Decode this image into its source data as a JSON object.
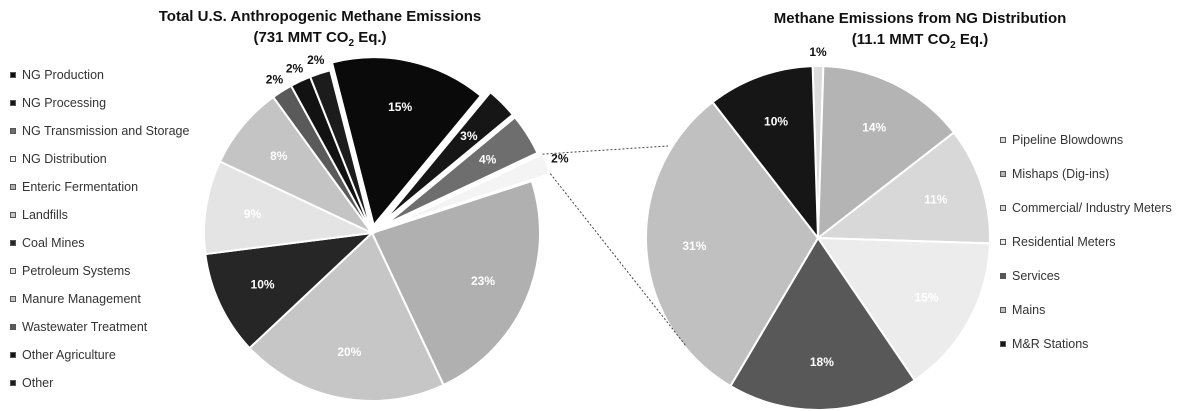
{
  "chart_data": [
    {
      "type": "pie",
      "title": "Total U.S. Anthropogenic Methane Emissions",
      "subtitle_prefix": "(731 MMT CO",
      "subtitle_sub": "2",
      "subtitle_suffix": " Eq.)",
      "legend_position": "left",
      "slices": [
        {
          "label": "NG Production",
          "value": 15,
          "pct_label": "15%",
          "color": "#0a0a0a",
          "text_color": "#ffffff"
        },
        {
          "label": "NG Processing",
          "value": 3,
          "pct_label": "3%",
          "color": "#161616",
          "text_color": "#ffffff"
        },
        {
          "label": "NG Transmission and Storage",
          "value": 4,
          "pct_label": "4%",
          "color": "#6e6e6e",
          "text_color": "#ffffff"
        },
        {
          "label": "NG Distribution",
          "value": 2,
          "pct_label": "2%",
          "color": "#f4f4f4",
          "text_color": "#111111"
        },
        {
          "label": "Enteric Fermentation",
          "value": 23,
          "pct_label": "23%",
          "color": "#b0b0b0",
          "text_color": "#ffffff"
        },
        {
          "label": "Landfills",
          "value": 20,
          "pct_label": "20%",
          "color": "#c6c6c6",
          "text_color": "#ffffff"
        },
        {
          "label": "Coal Mines",
          "value": 10,
          "pct_label": "10%",
          "color": "#262626",
          "text_color": "#ffffff"
        },
        {
          "label": "Petroleum Systems",
          "value": 9,
          "pct_label": "9%",
          "color": "#e4e4e4",
          "text_color": "#ffffff"
        },
        {
          "label": "Manure Management",
          "value": 8,
          "pct_label": "8%",
          "color": "#c4c4c4",
          "text_color": "#ffffff"
        },
        {
          "label": "Wastewater Treatment",
          "value": 2,
          "pct_label": "2%",
          "color": "#5a5a5a",
          "text_color": "#111111"
        },
        {
          "label": "Other Agriculture",
          "value": 2,
          "pct_label": "2%",
          "color": "#121212",
          "text_color": "#111111"
        },
        {
          "label": "Other",
          "value": 2,
          "pct_label": "2%",
          "color": "#1c1c1c",
          "text_color": "#111111"
        }
      ]
    },
    {
      "type": "pie",
      "title": "Methane Emissions from NG Distribution",
      "subtitle_prefix": "(11.1 MMT CO",
      "subtitle_sub": "2",
      "subtitle_suffix": " Eq.)",
      "legend_position": "right",
      "slices": [
        {
          "label": "Pipeline Blowdowns",
          "value": 1,
          "pct_label": "1%",
          "color": "#dcdcdc",
          "text_color": "#111111"
        },
        {
          "label": "Mishaps (Dig-ins)",
          "value": 14,
          "pct_label": "14%",
          "color": "#b4b4b4",
          "text_color": "#ffffff"
        },
        {
          "label": "Commercial/ Industry Meters",
          "value": 11,
          "pct_label": "11%",
          "color": "#d8d8d8",
          "text_color": "#ffffff"
        },
        {
          "label": "Residential Meters",
          "value": 15,
          "pct_label": "15%",
          "color": "#ececec",
          "text_color": "#ffffff"
        },
        {
          "label": "Services",
          "value": 18,
          "pct_label": "18%",
          "color": "#585858",
          "text_color": "#ffffff"
        },
        {
          "label": "Mains",
          "value": 31,
          "pct_label": "31%",
          "color": "#c0c0c0",
          "text_color": "#ffffff"
        },
        {
          "label": "M&R Stations",
          "value": 10,
          "pct_label": "10%",
          "color": "#161616",
          "text_color": "#ffffff"
        }
      ]
    }
  ]
}
